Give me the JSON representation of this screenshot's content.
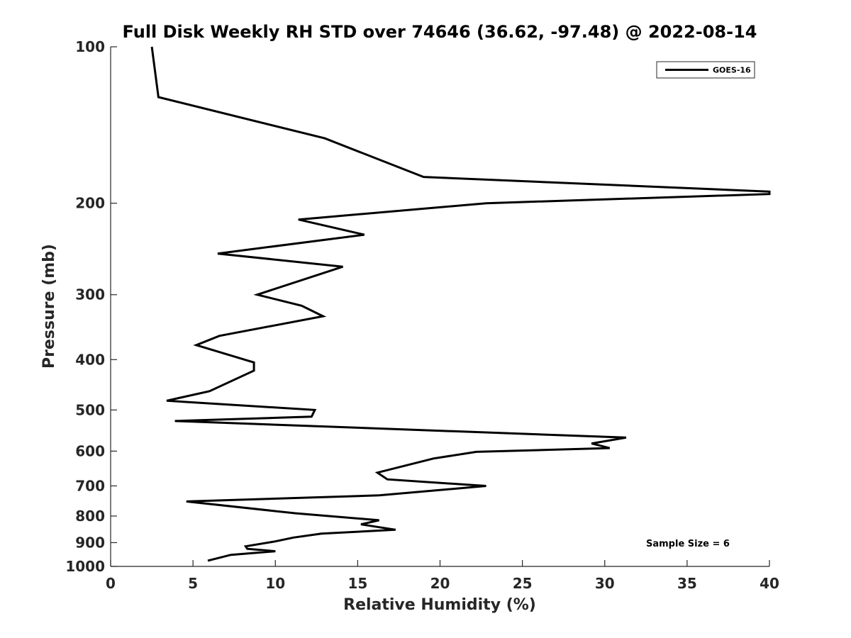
{
  "chart_data": {
    "type": "line",
    "title": "Full Disk Weekly RH STD over 74646 (36.62, -97.48) @ 2022-08-14",
    "xlabel": "Relative Humidity (%)",
    "ylabel": "Pressure (mb)",
    "xlim": [
      0,
      40
    ],
    "ylim": [
      100,
      1000
    ],
    "yscale": "log",
    "y_reversed": true,
    "grid": false,
    "xticks": [
      0,
      5,
      10,
      15,
      20,
      25,
      30,
      35,
      40
    ],
    "yticks": [
      100,
      200,
      300,
      400,
      500,
      600,
      700,
      800,
      900,
      1000
    ],
    "legend_position": "top-right",
    "annotation": "Sample Size = 6",
    "line_color": "#000000",
    "series": [
      {
        "name": "GOES-16",
        "points": [
          [
            2.5,
            100
          ],
          [
            2.9,
            125
          ],
          [
            13.0,
            150
          ],
          [
            19.0,
            178
          ],
          [
            40.0,
            190
          ],
          [
            40.0,
            192
          ],
          [
            22.8,
            200
          ],
          [
            11.4,
            215
          ],
          [
            15.4,
            230
          ],
          [
            6.5,
            250
          ],
          [
            14.1,
            265
          ],
          [
            8.9,
            300
          ],
          [
            11.6,
            315
          ],
          [
            12.9,
            330
          ],
          [
            6.6,
            360
          ],
          [
            5.2,
            375
          ],
          [
            8.7,
            405
          ],
          [
            8.7,
            420
          ],
          [
            6.0,
            460
          ],
          [
            3.4,
            480
          ],
          [
            12.4,
            500
          ],
          [
            12.2,
            515
          ],
          [
            3.9,
            525
          ],
          [
            31.3,
            565
          ],
          [
            29.2,
            580
          ],
          [
            30.3,
            592
          ],
          [
            22.2,
            602
          ],
          [
            19.6,
            620
          ],
          [
            16.2,
            660
          ],
          [
            16.8,
            680
          ],
          [
            22.8,
            700
          ],
          [
            16.3,
            730
          ],
          [
            4.6,
            750
          ],
          [
            11.2,
            790
          ],
          [
            16.3,
            815
          ],
          [
            15.2,
            830
          ],
          [
            17.3,
            850
          ],
          [
            12.8,
            865
          ],
          [
            11.1,
            880
          ],
          [
            10.0,
            895
          ],
          [
            8.2,
            915
          ],
          [
            8.3,
            925
          ],
          [
            10.0,
            935
          ],
          [
            7.3,
            950
          ],
          [
            5.9,
            975
          ]
        ]
      }
    ]
  }
}
